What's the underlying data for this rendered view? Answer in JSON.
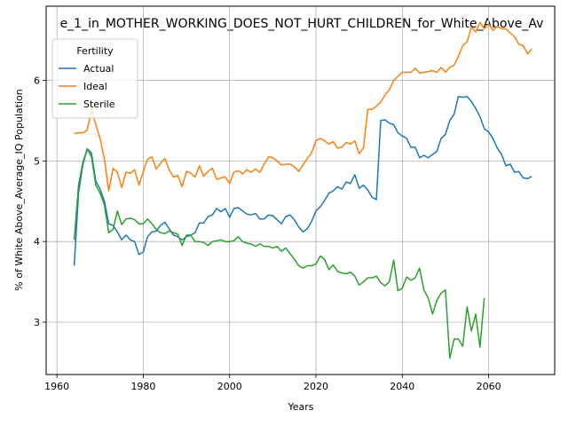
{
  "chart_data": {
    "type": "line",
    "title": "e_1_in_MOTHER_WORKING_DOES_NOT_HURT_CHILDREN_for_White_Above_Av",
    "xlabel": "Years",
    "ylabel": "% of White Above_Average_IQ Population",
    "xlim": [
      1957.5,
      2075.3
    ],
    "ylim": [
      2.35,
      6.92
    ],
    "xticks": [
      1960,
      1980,
      2000,
      2020,
      2040,
      2060
    ],
    "yticks": [
      3,
      4,
      5,
      6
    ],
    "grid": true,
    "legend": {
      "title": "Fertility",
      "placement": "top-left"
    },
    "series": [
      {
        "name": "Actual",
        "color": "#1f77b4",
        "x": [
          1964,
          1965,
          1966,
          1967,
          1968,
          1969,
          1970,
          1971,
          1972,
          1973,
          1974,
          1975,
          1976,
          1977,
          1978,
          1979,
          1980,
          1981,
          1982,
          1983,
          1984,
          1985,
          1986,
          1987,
          1988,
          1989,
          1990,
          1991,
          1992,
          1993,
          1994,
          1995,
          1996,
          1997,
          1998,
          1999,
          2000,
          2001,
          2002,
          2003,
          2004,
          2005,
          2006,
          2007,
          2008,
          2009,
          2010,
          2011,
          2012,
          2013,
          2014,
          2015,
          2016,
          2017,
          2018,
          2019,
          2020,
          2021,
          2022,
          2023,
          2024,
          2025,
          2026,
          2027,
          2028,
          2029,
          2030,
          2031,
          2032,
          2033,
          2034,
          2035,
          2036,
          2037,
          2038,
          2039,
          2040,
          2041,
          2042,
          2043,
          2044,
          2045,
          2046,
          2047,
          2048,
          2049,
          2050,
          2051,
          2052,
          2053,
          2054,
          2055,
          2056,
          2057,
          2058,
          2059,
          2060,
          2061,
          2062,
          2063,
          2064,
          2065,
          2066,
          2067,
          2068,
          2069,
          2070
        ],
        "values": [
          3.7,
          4.6,
          4.95,
          5.15,
          5.1,
          4.75,
          4.65,
          4.5,
          4.22,
          4.2,
          4.12,
          4.02,
          4.08,
          4.02,
          4.0,
          3.84,
          3.87,
          4.06,
          4.12,
          4.13,
          4.2,
          4.24,
          4.16,
          4.08,
          4.06,
          4.02,
          4.06,
          4.08,
          4.11,
          4.23,
          4.23,
          4.31,
          4.33,
          4.41,
          4.37,
          4.41,
          4.3,
          4.41,
          4.42,
          4.38,
          4.34,
          4.33,
          4.35,
          4.28,
          4.28,
          4.33,
          4.32,
          4.27,
          4.22,
          4.31,
          4.33,
          4.27,
          4.18,
          4.12,
          4.16,
          4.25,
          4.38,
          4.43,
          4.51,
          4.6,
          4.63,
          4.68,
          4.65,
          4.74,
          4.72,
          4.83,
          4.66,
          4.7,
          4.64,
          4.55,
          4.52,
          5.5,
          5.51,
          5.47,
          5.45,
          5.35,
          5.31,
          5.28,
          5.17,
          5.17,
          5.04,
          5.07,
          5.04,
          5.08,
          5.12,
          5.28,
          5.33,
          5.5,
          5.58,
          5.8,
          5.79,
          5.8,
          5.74,
          5.65,
          5.55,
          5.4,
          5.36,
          5.28,
          5.16,
          5.08,
          4.94,
          4.96,
          4.86,
          4.87,
          4.79,
          4.78,
          4.81
        ]
      },
      {
        "name": "Ideal",
        "color": "#ff7f0e",
        "x": [
          1964,
          1965,
          1966,
          1967,
          1968,
          1969,
          1970,
          1971,
          1972,
          1973,
          1974,
          1975,
          1976,
          1977,
          1978,
          1979,
          1980,
          1981,
          1982,
          1983,
          1984,
          1985,
          1986,
          1987,
          1988,
          1989,
          1990,
          1991,
          1992,
          1993,
          1994,
          1995,
          1996,
          1997,
          1998,
          1999,
          2000,
          2001,
          2002,
          2003,
          2004,
          2005,
          2006,
          2007,
          2008,
          2009,
          2010,
          2011,
          2012,
          2013,
          2014,
          2015,
          2016,
          2017,
          2018,
          2019,
          2020,
          2021,
          2022,
          2023,
          2024,
          2025,
          2026,
          2027,
          2028,
          2029,
          2030,
          2031,
          2032,
          2033,
          2034,
          2035,
          2036,
          2037,
          2038,
          2039,
          2040,
          2041,
          2042,
          2043,
          2044,
          2045,
          2046,
          2047,
          2048,
          2049,
          2050,
          2051,
          2052,
          2053,
          2054,
          2055,
          2056,
          2057,
          2058,
          2059,
          2060,
          2061,
          2062,
          2063,
          2064,
          2065,
          2066,
          2067,
          2068,
          2069,
          2070
        ],
        "values": [
          5.34,
          5.35,
          5.35,
          5.38,
          5.64,
          5.45,
          5.28,
          5.02,
          4.63,
          4.91,
          4.86,
          4.67,
          4.86,
          4.85,
          4.89,
          4.7,
          4.87,
          5.02,
          5.05,
          4.9,
          4.97,
          5.03,
          4.89,
          4.8,
          4.82,
          4.68,
          4.87,
          4.85,
          4.8,
          4.94,
          4.81,
          4.87,
          4.91,
          4.77,
          4.79,
          4.8,
          4.72,
          4.86,
          4.88,
          4.84,
          4.89,
          4.86,
          4.9,
          4.86,
          4.96,
          5.05,
          5.04,
          5.0,
          4.95,
          4.96,
          4.96,
          4.93,
          4.87,
          4.95,
          5.03,
          5.1,
          5.25,
          5.28,
          5.25,
          5.21,
          5.24,
          5.16,
          5.17,
          5.23,
          5.21,
          5.25,
          5.09,
          5.16,
          5.64,
          5.64,
          5.68,
          5.73,
          5.82,
          5.88,
          6.0,
          6.05,
          6.1,
          6.1,
          6.1,
          6.15,
          6.09,
          6.1,
          6.11,
          6.12,
          6.1,
          6.16,
          6.1,
          6.16,
          6.19,
          6.3,
          6.43,
          6.48,
          6.66,
          6.6,
          6.72,
          6.64,
          6.7,
          6.62,
          6.67,
          6.64,
          6.64,
          6.59,
          6.54,
          6.45,
          6.43,
          6.33,
          6.39
        ]
      },
      {
        "name": "Sterile",
        "color": "#2ca02c",
        "x": [
          1964,
          1965,
          1966,
          1967,
          1968,
          1969,
          1970,
          1971,
          1972,
          1973,
          1974,
          1975,
          1976,
          1977,
          1978,
          1979,
          1980,
          1981,
          1982,
          1983,
          1984,
          1985,
          1986,
          1987,
          1988,
          1989,
          1990,
          1991,
          1992,
          1993,
          1994,
          1995,
          1996,
          1997,
          1998,
          1999,
          2000,
          2001,
          2002,
          2003,
          2004,
          2005,
          2006,
          2007,
          2008,
          2009,
          2010,
          2011,
          2012,
          2013,
          2014,
          2015,
          2016,
          2017,
          2018,
          2019,
          2020,
          2021,
          2022,
          2023,
          2024,
          2025,
          2026,
          2027,
          2028,
          2029,
          2030,
          2031,
          2032,
          2033,
          2034,
          2035,
          2036,
          2037,
          2038,
          2039,
          2040,
          2041,
          2042,
          2043,
          2044,
          2045,
          2046,
          2047,
          2048,
          2049,
          2050,
          2051,
          2052,
          2053,
          2054,
          2055,
          2056,
          2057,
          2058,
          2059
        ],
        "values": [
          4.02,
          4.7,
          4.98,
          5.15,
          5.05,
          4.7,
          4.6,
          4.45,
          4.11,
          4.15,
          4.38,
          4.21,
          4.28,
          4.29,
          4.27,
          4.22,
          4.22,
          4.28,
          4.22,
          4.15,
          4.11,
          4.1,
          4.13,
          4.11,
          4.09,
          3.95,
          4.08,
          4.08,
          4.0,
          4.0,
          3.99,
          3.95,
          4.0,
          4.01,
          4.02,
          4.0,
          4.0,
          4.01,
          4.06,
          4.0,
          3.98,
          3.97,
          3.94,
          3.97,
          3.94,
          3.94,
          3.92,
          3.94,
          3.88,
          3.92,
          3.85,
          3.78,
          3.7,
          3.67,
          3.7,
          3.7,
          3.72,
          3.82,
          3.78,
          3.65,
          3.71,
          3.63,
          3.61,
          3.6,
          3.62,
          3.57,
          3.46,
          3.5,
          3.55,
          3.55,
          3.57,
          3.49,
          3.45,
          3.5,
          3.77,
          3.39,
          3.42,
          3.56,
          3.52,
          3.55,
          3.67,
          3.4,
          3.3,
          3.1,
          3.27,
          3.36,
          3.4,
          2.55,
          2.79,
          2.79,
          2.7,
          3.19,
          2.89,
          3.1,
          2.69,
          3.3
        ]
      }
    ]
  }
}
